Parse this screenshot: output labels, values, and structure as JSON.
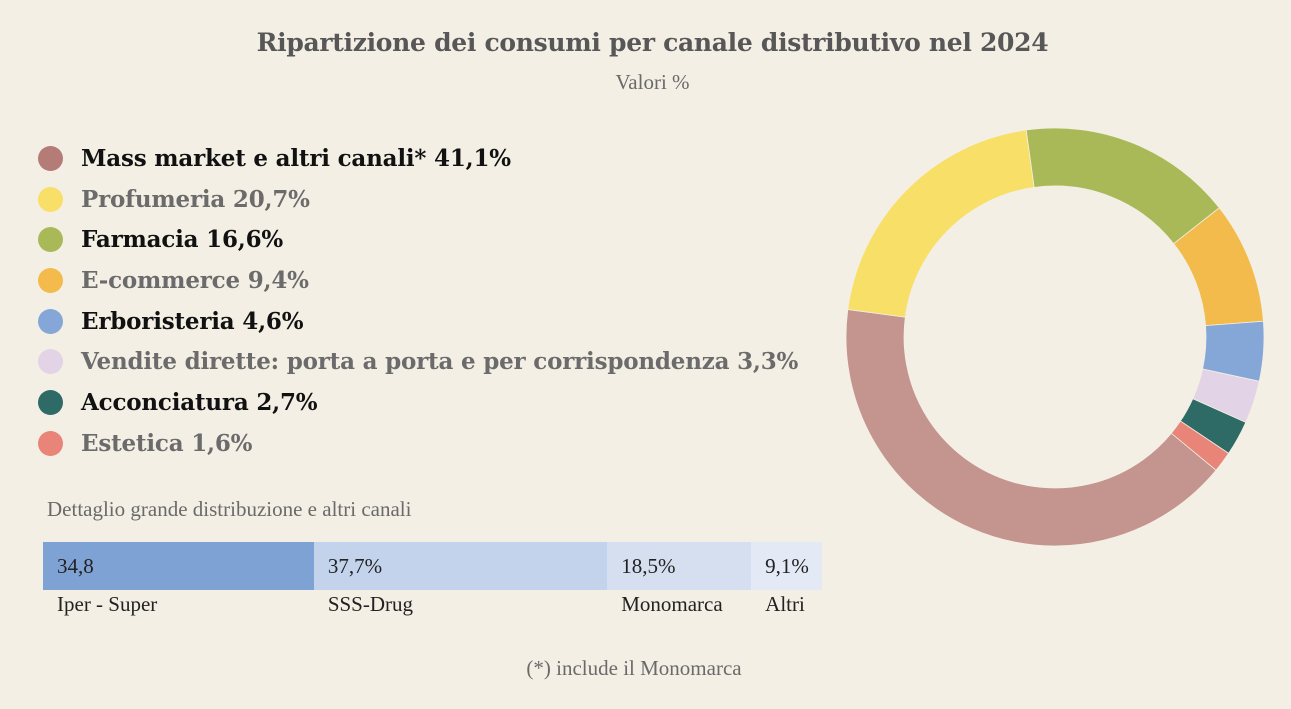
{
  "chart_data": [
    {
      "type": "pie",
      "title": "Ripartizione dei consumi per canale distributivo nel 2024",
      "subtitle": "Valori %",
      "donut": true,
      "legend_position": "left",
      "slices": [
        {
          "label": "Mass market e altri canali* 41,1%",
          "name": "Mass market e altri canali*",
          "value": 41.1,
          "color": "#c4948e",
          "legend_color": "#b57b76",
          "legend_style": "dark"
        },
        {
          "label": "Profumeria 20,7%",
          "name": "Profumeria",
          "value": 20.7,
          "color": "#f8df68",
          "legend_color": "#f8df68",
          "legend_style": "light"
        },
        {
          "label": "Farmacia 16,6%",
          "name": "Farmacia",
          "value": 16.6,
          "color": "#aab957",
          "legend_color": "#aab957",
          "legend_style": "dark"
        },
        {
          "label": "E-commerce 9,4%",
          "name": "E-commerce",
          "value": 9.4,
          "color": "#f2bb4c",
          "legend_color": "#f2bb4c",
          "legend_style": "light"
        },
        {
          "label": "Erboristeria 4,6%",
          "name": "Erboristeria",
          "value": 4.6,
          "color": "#85a7d8",
          "legend_color": "#85a7d8",
          "legend_style": "dark"
        },
        {
          "label": "Vendite dirette: porta a porta e per corrispondenza 3,3%",
          "name": "Vendite dirette: porta a porta e per corrispondenza",
          "value": 3.3,
          "color": "#e3d3e6",
          "legend_color": "#e3d3e6",
          "legend_style": "light"
        },
        {
          "label": "Acconciatura 2,7%",
          "name": "Acconciatura",
          "value": 2.7,
          "color": "#2e6b66",
          "legend_color": "#2e6b66",
          "legend_style": "dark"
        },
        {
          "label": "Estetica  1,6%",
          "name": "Estetica",
          "value": 1.6,
          "color": "#e88478",
          "legend_color": "#e88478",
          "legend_style": "light"
        }
      ]
    },
    {
      "type": "bar",
      "stacked": true,
      "orientation": "horizontal",
      "title": "Dettaglio grande distribuzione e altri canali",
      "segments": [
        {
          "category": "Iper - Super",
          "value": 34.8,
          "value_label": "34,8",
          "color": "#7fa2d4"
        },
        {
          "category": "SSS-Drug",
          "value": 37.7,
          "value_label": "37,7%",
          "color": "#c3d3ec"
        },
        {
          "category": "Monomarca",
          "value": 18.5,
          "value_label": "18,5%",
          "color": "#d6dfef"
        },
        {
          "category": "Altri",
          "value": 9.1,
          "value_label": "9,1%",
          "color": "#e3eaf6"
        }
      ]
    }
  ],
  "footnote": "(*) include il Monomarca"
}
